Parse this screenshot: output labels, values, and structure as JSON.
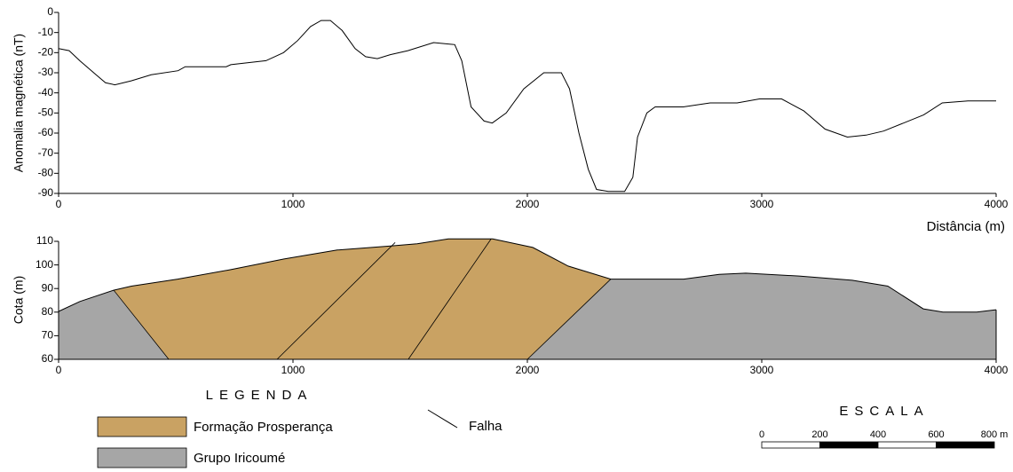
{
  "chart_data": [
    {
      "type": "line",
      "ylabel": "Anomalia magnética (nT)",
      "xlabel": "Distância (m)",
      "xlim": [
        0,
        4000
      ],
      "xticks": [
        0,
        1000,
        2000,
        3000,
        4000
      ],
      "ylim": [
        -90,
        0
      ],
      "yticks": [
        0,
        -10,
        -20,
        -30,
        -40,
        -50,
        -60,
        -70,
        -80,
        -90
      ],
      "color": "#000000",
      "x": [
        0,
        45,
        90,
        160,
        200,
        240,
        310,
        395,
        510,
        540,
        715,
        735,
        885,
        960,
        1020,
        1075,
        1120,
        1160,
        1210,
        1265,
        1310,
        1360,
        1415,
        1490,
        1600,
        1690,
        1720,
        1760,
        1815,
        1850,
        1910,
        1985,
        2070,
        2145,
        2180,
        2220,
        2260,
        2295,
        2345,
        2415,
        2450,
        2470,
        2510,
        2545,
        2665,
        2780,
        2895,
        2990,
        3085,
        3180,
        3270,
        3365,
        3445,
        3520,
        3690,
        3770,
        3880,
        4000
      ],
      "values": [
        -18,
        -19,
        -24,
        -31,
        -35,
        -36,
        -34,
        -31,
        -29,
        -27,
        -27,
        -26,
        -24,
        -20,
        -14,
        -7,
        -4,
        -4,
        -9,
        -18,
        -22,
        -23,
        -21,
        -19,
        -15,
        -16,
        -24,
        -47,
        -54,
        -55,
        -50,
        -38,
        -30,
        -30,
        -38,
        -60,
        -78,
        -88,
        -89,
        -89,
        -82,
        -62,
        -50,
        -47,
        -47,
        -45,
        -45,
        -43,
        -43,
        -49,
        -58,
        -62,
        -61,
        -59,
        -51,
        -45,
        -44,
        -44
      ]
    },
    {
      "type": "section",
      "ylabel": "Cota (m)",
      "xlim": [
        0,
        4000
      ],
      "xticks": [
        0,
        1000,
        2000,
        3000,
        4000
      ],
      "ylim": [
        60,
        110
      ],
      "yticks": [
        60,
        70,
        80,
        90,
        100,
        110
      ],
      "surface": {
        "x": [
          0,
          91,
          235,
          311,
          508,
          735,
          962,
          1189,
          1417,
          1530,
          1663,
          1852,
          2023,
          2174,
          2356,
          2667,
          2818,
          2932,
          3159,
          3386,
          3538,
          3689,
          3773,
          3917,
          4000
        ],
        "y": [
          80.3,
          84.5,
          89.3,
          91,
          94,
          98,
          102.5,
          106.3,
          108,
          109,
          111,
          111,
          107.4,
          99.5,
          94,
          94,
          96,
          96.5,
          95.3,
          93.5,
          91,
          81.4,
          80,
          80,
          81
        ]
      },
      "faults": [
        {
          "x": [
            235,
            470
          ],
          "y": [
            89.3,
            60
          ]
        },
        {
          "x": [
            932,
            1436
          ],
          "y": [
            60,
            109.5
          ]
        },
        {
          "x": [
            1492,
            1845
          ],
          "y": [
            60,
            111
          ]
        },
        {
          "x": [
            2356,
            2000
          ],
          "y": [
            94,
            60
          ]
        }
      ],
      "units": [
        {
          "name": "Formação Prosperança",
          "color": "#c9a263"
        },
        {
          "name": "Grupo Iricoumé",
          "color": "#a6a6a6"
        }
      ],
      "legend": {
        "title": "LEGENDA",
        "fault_label": "Falha"
      },
      "scale_bar": {
        "title": "ESCALA",
        "ticks": [
          0,
          200,
          400,
          600,
          {
            "value": 800,
            "label": "800 m"
          }
        ]
      }
    }
  ]
}
